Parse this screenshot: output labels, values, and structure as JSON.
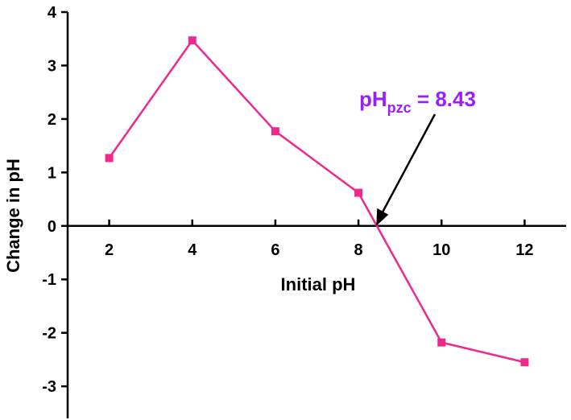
{
  "chart_data": {
    "type": "line",
    "x": [
      2,
      4,
      6,
      8,
      10,
      12
    ],
    "series": [
      {
        "name": "Change in pH",
        "color": "#f0288c",
        "values": [
          1.27,
          3.47,
          1.77,
          0.62,
          -2.18,
          -2.55
        ]
      }
    ],
    "xlabel": "Initial pH",
    "ylabel": "Change in pH",
    "xlim": [
      1,
      13
    ],
    "ylim": [
      -3.6,
      4
    ],
    "xticks": [
      2,
      4,
      6,
      8,
      10,
      12
    ],
    "yticks": [
      -3,
      -2,
      -1,
      0,
      1,
      2,
      3,
      4
    ],
    "annotation": {
      "main": "pH",
      "sub": "pzc",
      "rest": " = 8.43",
      "x": 8.43,
      "color": "#9b1dff"
    }
  }
}
